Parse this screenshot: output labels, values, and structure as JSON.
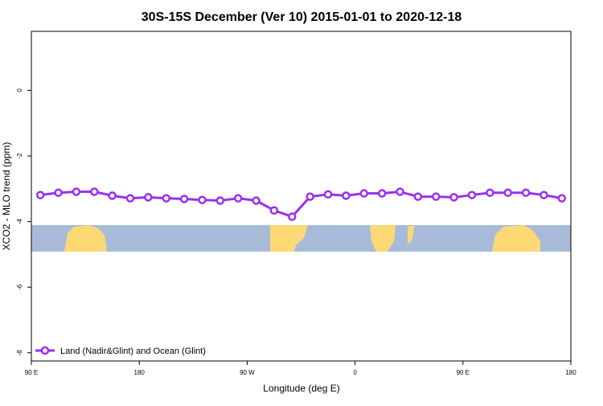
{
  "chart_data": {
    "type": "line",
    "title": "30S-15S December (Ver 10)   2015-01-01 to 2020-12-18",
    "x_label": "Longitude (deg E)",
    "y_label": "XCO2 - MLO trend (ppm)",
    "x": [
      97.5,
      112.5,
      127.5,
      142.5,
      157.5,
      172.5,
      187.5,
      202.5,
      217.5,
      232.5,
      247.5,
      262.5,
      277.5,
      292.5,
      307.5,
      322.5,
      337.5,
      352.5,
      367.5,
      382.5,
      397.5,
      412.5,
      427.5,
      442.5,
      457.5,
      472.5,
      487.5,
      502.5,
      517.5,
      532.5
    ],
    "series": [
      {
        "name": "Land (Nadir&Glint) and Ocean (Glint)",
        "color": "#9b30ee",
        "values": [
          -3.19,
          -3.12,
          -3.09,
          -3.09,
          -3.21,
          -3.29,
          -3.26,
          -3.29,
          -3.31,
          -3.34,
          -3.36,
          -3.29,
          -3.36,
          -3.66,
          -3.85,
          -3.24,
          -3.17,
          -3.21,
          -3.14,
          -3.14,
          -3.09,
          -3.24,
          -3.24,
          -3.26,
          -3.19,
          -3.12,
          -3.12,
          -3.12,
          -3.19,
          -3.29
        ]
      }
    ],
    "xlim": [
      90,
      540
    ],
    "xticks": [
      {
        "value": 90,
        "label": "90 E"
      },
      {
        "value": 180,
        "label": "180"
      },
      {
        "value": 270,
        "label": "90 W"
      },
      {
        "value": 360,
        "label": "0"
      },
      {
        "value": 450,
        "label": "90 E"
      },
      {
        "value": 540,
        "label": "180"
      }
    ],
    "ylim": [
      -8.25,
      1.8
    ],
    "yticks": [
      0,
      -2,
      -4,
      -6,
      -8
    ],
    "legend": "bottom-left"
  }
}
